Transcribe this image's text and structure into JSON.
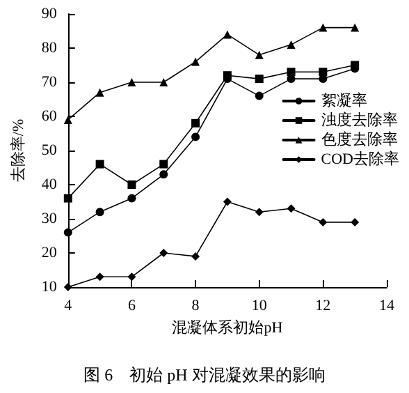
{
  "chart_data": {
    "type": "line",
    "title": "图 6　初始 pH 对混凝效果的影响",
    "xlabel": "混凝体系初始pH",
    "ylabel": "去除率/%",
    "x": [
      4,
      5,
      6,
      7,
      8,
      9,
      10,
      11,
      12,
      13
    ],
    "series": [
      {
        "name": "絮凝率",
        "color": "#000000",
        "marker": "circle",
        "values": [
          26,
          32,
          36,
          43,
          54,
          71,
          66,
          71,
          71,
          74
        ]
      },
      {
        "name": "浊度去除率",
        "color": "#000000",
        "marker": "square",
        "values": [
          36,
          46,
          40,
          46,
          58,
          72,
          71,
          73,
          73,
          75
        ]
      },
      {
        "name": "色度去除率",
        "color": "#000000",
        "marker": "triangle",
        "values": [
          59,
          67,
          70,
          70,
          76,
          84,
          78,
          81,
          86,
          86
        ]
      },
      {
        "name": "COD去除率",
        "color": "#000000",
        "marker": "diamond",
        "values": [
          10,
          13,
          13,
          20,
          19,
          35,
          32,
          33,
          29,
          29
        ]
      }
    ],
    "xlim": [
      4,
      14
    ],
    "xticks": [
      4,
      6,
      8,
      10,
      12,
      14
    ],
    "ylim": [
      10,
      90
    ],
    "yticks": [
      10,
      20,
      30,
      40,
      50,
      60,
      70,
      80,
      90
    ],
    "grid": false,
    "legend": "right",
    "line_style": "solid"
  }
}
